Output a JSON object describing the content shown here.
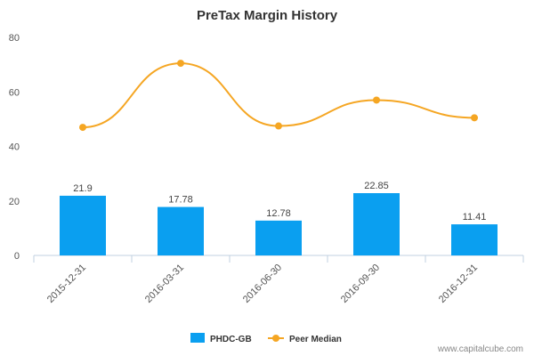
{
  "chart_data": {
    "type": "bar",
    "title": "PreTax Margin History",
    "categories": [
      "2015-12-31",
      "2016-03-31",
      "2016-06-30",
      "2016-09-30",
      "2016-12-31"
    ],
    "series": [
      {
        "name": "PHDC-GB",
        "type": "bar",
        "values": [
          21.9,
          17.78,
          12.78,
          22.85,
          11.41
        ],
        "labels": [
          "21.9",
          "17.78",
          "12.78",
          "22.85",
          "11.41"
        ],
        "color": "#0a9ff0"
      },
      {
        "name": "Peer Median",
        "type": "line",
        "values": [
          47,
          70.5,
          47.5,
          57,
          50.5
        ],
        "color": "#f5a623"
      }
    ],
    "ylim": [
      0,
      80
    ],
    "yticks": [
      "0",
      "20",
      "40",
      "60",
      "80"
    ],
    "grid": false,
    "legend": "bottom-center"
  },
  "credit": "www.capitalcube.com"
}
